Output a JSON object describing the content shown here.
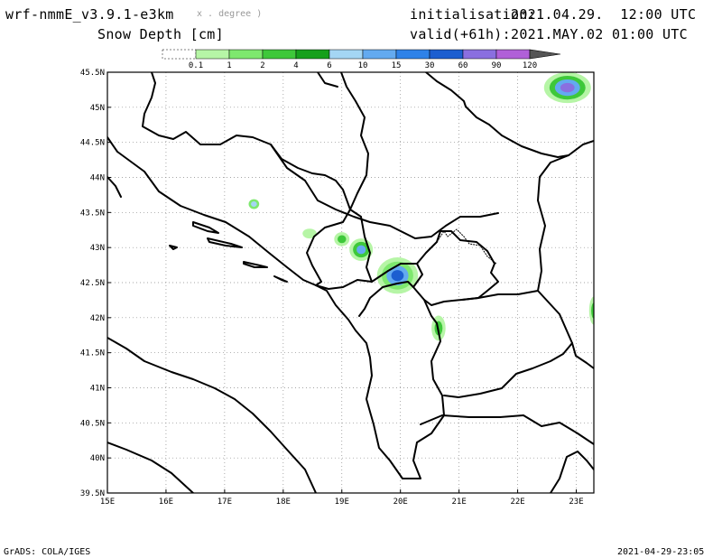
{
  "header": {
    "model": "wrf-nmmE_v3.9.1-e3km",
    "coords_note": "x . degree )",
    "field": "Snow Depth [cm]",
    "init_label": "initialisation:",
    "init_value": "2021.04.29.  12:00 UTC",
    "valid_label": "valid(+61h):",
    "valid_value": "2021.MAY.02 01:00 UTC"
  },
  "legend": {
    "bins": [
      {
        "color": "#ffffff",
        "label": "0.1"
      },
      {
        "color": "#b6f5a6",
        "label": "1"
      },
      {
        "color": "#7ee86e",
        "label": "2"
      },
      {
        "color": "#3ec83a",
        "label": "4"
      },
      {
        "color": "#16a01c",
        "label": "6"
      },
      {
        "color": "#a4d6f4",
        "label": "10"
      },
      {
        "color": "#63aaf0",
        "label": "15"
      },
      {
        "color": "#2e82e8",
        "label": "30"
      },
      {
        "color": "#1c5ed0",
        "label": "60"
      },
      {
        "color": "#8a6fe0",
        "label": "90"
      },
      {
        "color": "#b060d8",
        "label": "120"
      },
      {
        "color": "#555555",
        "label": ""
      }
    ]
  },
  "map": {
    "lon_range": [
      15,
      23.3
    ],
    "lat_range": [
      39.5,
      45.5
    ],
    "lon_ticks": [
      {
        "v": 15,
        "label": "15E"
      },
      {
        "v": 16,
        "label": "16E"
      },
      {
        "v": 17,
        "label": "17E"
      },
      {
        "v": 18,
        "label": "18E"
      },
      {
        "v": 19,
        "label": "19E"
      },
      {
        "v": 20,
        "label": "20E"
      },
      {
        "v": 21,
        "label": "21E"
      },
      {
        "v": 22,
        "label": "22E"
      },
      {
        "v": 23,
        "label": "23E"
      }
    ],
    "lat_ticks": [
      {
        "v": 39.5,
        "label": "39.5N"
      },
      {
        "v": 40,
        "label": "40N"
      },
      {
        "v": 40.5,
        "label": "40.5N"
      },
      {
        "v": 41,
        "label": "41N"
      },
      {
        "v": 41.5,
        "label": "41.5N"
      },
      {
        "v": 42,
        "label": "42N"
      },
      {
        "v": 42.5,
        "label": "42.5N"
      },
      {
        "v": 43,
        "label": "43N"
      },
      {
        "v": 43.5,
        "label": "43.5N"
      },
      {
        "v": 44,
        "label": "44N"
      },
      {
        "v": 44.5,
        "label": "44.5N"
      },
      {
        "v": 45,
        "label": "45N"
      },
      {
        "v": 45.5,
        "label": "45.5N"
      }
    ],
    "snow_patches": [
      {
        "name": "carpathians",
        "lon": 22.85,
        "lat": 45.28,
        "rlon": 0.4,
        "rlat": 0.22,
        "levels": [
          1,
          4,
          15,
          90
        ]
      },
      {
        "name": "velebit",
        "lon": 17.5,
        "lat": 43.62,
        "rlon": 0.09,
        "rlat": 0.07,
        "levels": [
          2,
          10
        ]
      },
      {
        "name": "sarajevo-west",
        "lon": 18.45,
        "lat": 43.2,
        "rlon": 0.12,
        "rlat": 0.07,
        "levels": [
          1
        ]
      },
      {
        "name": "durmitor",
        "lon": 19.0,
        "lat": 43.12,
        "rlon": 0.13,
        "rlat": 0.1,
        "levels": [
          1,
          4
        ]
      },
      {
        "name": "sinjajevina",
        "lon": 19.33,
        "lat": 42.97,
        "rlon": 0.2,
        "rlat": 0.16,
        "levels": [
          1,
          4,
          15
        ]
      },
      {
        "name": "prokletije",
        "lon": 19.95,
        "lat": 42.6,
        "rlon": 0.35,
        "rlat": 0.26,
        "levels": [
          1,
          2,
          15,
          60
        ]
      },
      {
        "name": "sar-mountains",
        "lon": 20.65,
        "lat": 41.85,
        "rlon": 0.12,
        "rlat": 0.18,
        "levels": [
          1,
          4
        ]
      },
      {
        "name": "east-edge",
        "lon": 23.3,
        "lat": 42.1,
        "rlon": 0.08,
        "rlat": 0.2,
        "levels": [
          1,
          4
        ]
      }
    ]
  },
  "footer": {
    "left": "GrADS: COLA/IGES",
    "right": "2021-04-29-23:05"
  }
}
